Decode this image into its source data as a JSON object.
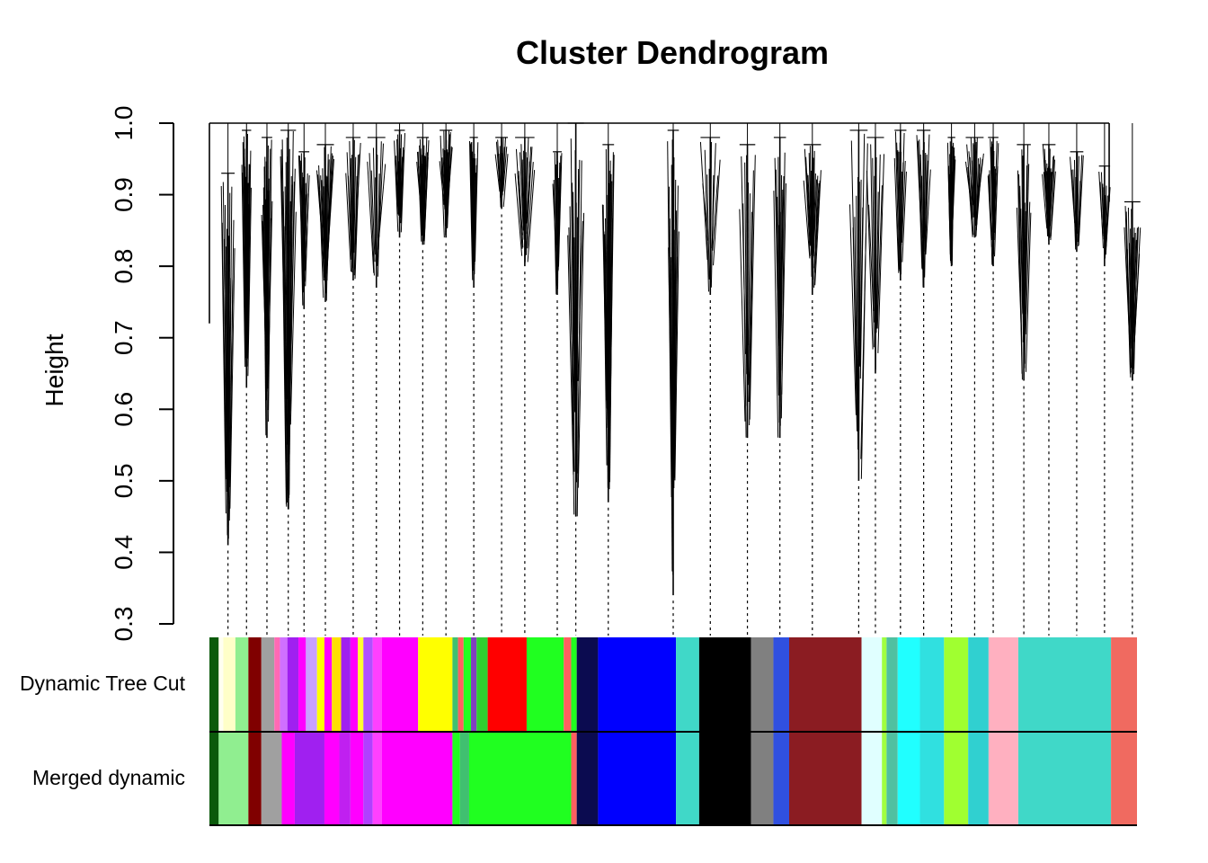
{
  "chart_data": {
    "type": "dendrogram",
    "title": "Cluster Dendrogram",
    "ylabel": "Height",
    "ylim": [
      0.3,
      1.0
    ],
    "yticks": [
      "0.3",
      "0.4",
      "0.5",
      "0.6",
      "0.7",
      "0.8",
      "0.9",
      "1.0"
    ],
    "color_rows": [
      {
        "label": "Dynamic Tree Cut",
        "segments": [
          [
            "#0b5a0b",
            0.0,
            0.01
          ],
          [
            "#fffff0",
            0.01,
            0.015
          ],
          [
            "#ffffc8",
            0.015,
            0.028
          ],
          [
            "#90ee90",
            0.028,
            0.042
          ],
          [
            "#800000",
            0.042,
            0.056
          ],
          [
            "#a0a0a0",
            0.056,
            0.07
          ],
          [
            "#ff69b4",
            0.07,
            0.076
          ],
          [
            "#d070ff",
            0.076,
            0.084
          ],
          [
            "#a020f0",
            0.084,
            0.096
          ],
          [
            "#ff00ff",
            0.096,
            0.104
          ],
          [
            "#c8a0ff",
            0.104,
            0.116
          ],
          [
            "#ffff00",
            0.116,
            0.124
          ],
          [
            "#ff00ff",
            0.124,
            0.132
          ],
          [
            "#ffe000",
            0.132,
            0.142
          ],
          [
            "#a020f0",
            0.142,
            0.152
          ],
          [
            "#ff00ff",
            0.152,
            0.16
          ],
          [
            "#ffff30",
            0.16,
            0.166
          ],
          [
            "#b050ff",
            0.166,
            0.176
          ],
          [
            "#ff40ff",
            0.176,
            0.186
          ],
          [
            "#ff00ff",
            0.186,
            0.225
          ],
          [
            "#ffff00",
            0.225,
            0.262
          ],
          [
            "#40c070",
            0.262,
            0.268
          ],
          [
            "#ff6060",
            0.268,
            0.274
          ],
          [
            "#20ff20",
            0.274,
            0.282
          ],
          [
            "#8040c0",
            0.282,
            0.288
          ],
          [
            "#30d030",
            0.288,
            0.3
          ],
          [
            "#ff0000",
            0.3,
            0.342
          ],
          [
            "#20ff20",
            0.342,
            0.382
          ],
          [
            "#ff6060",
            0.382,
            0.39
          ],
          [
            "#20ff20",
            0.39,
            0.396
          ],
          [
            "#0b0b50",
            0.396,
            0.419
          ],
          [
            "#0000ff",
            0.419,
            0.503
          ],
          [
            "#40d8c8",
            0.503,
            0.528
          ],
          [
            "#000000",
            0.528,
            0.584
          ],
          [
            "#808080",
            0.584,
            0.608
          ],
          [
            "#3050e0",
            0.608,
            0.625
          ],
          [
            "#8b1c22",
            0.625,
            0.703
          ],
          [
            "#e0ffff",
            0.703,
            0.725
          ],
          [
            "#a0ff40",
            0.725,
            0.73
          ],
          [
            "#50c0a0",
            0.73,
            0.742
          ],
          [
            "#20ffff",
            0.742,
            0.766
          ],
          [
            "#30e0e0",
            0.766,
            0.792
          ],
          [
            "#a0ff30",
            0.792,
            0.818
          ],
          [
            "#30d0d0",
            0.818,
            0.84
          ],
          [
            "#ffb0c0",
            0.84,
            0.872
          ],
          [
            "#40d8c8",
            0.872,
            0.972
          ],
          [
            "#f06a60",
            0.972,
            1.0
          ]
        ]
      },
      {
        "label": "Merged dynamic",
        "segments": [
          [
            "#0b5a0b",
            0.0,
            0.01
          ],
          [
            "#90ee90",
            0.01,
            0.042
          ],
          [
            "#800000",
            0.042,
            0.056
          ],
          [
            "#a0a0a0",
            0.056,
            0.078
          ],
          [
            "#ff00ff",
            0.078,
            0.092
          ],
          [
            "#a020f0",
            0.092,
            0.124
          ],
          [
            "#ff00ff",
            0.124,
            0.14
          ],
          [
            "#c020f0",
            0.14,
            0.152
          ],
          [
            "#ff00ff",
            0.152,
            0.166
          ],
          [
            "#b040ff",
            0.166,
            0.176
          ],
          [
            "#ff40ff",
            0.176,
            0.186
          ],
          [
            "#ff00ff",
            0.186,
            0.262
          ],
          [
            "#20ff20",
            0.262,
            0.27
          ],
          [
            "#40c070",
            0.27,
            0.28
          ],
          [
            "#20ff20",
            0.28,
            0.39
          ],
          [
            "#ff6060",
            0.39,
            0.396
          ],
          [
            "#0b0b50",
            0.396,
            0.419
          ],
          [
            "#0000ff",
            0.419,
            0.503
          ],
          [
            "#40d8c8",
            0.503,
            0.528
          ],
          [
            "#000000",
            0.528,
            0.584
          ],
          [
            "#808080",
            0.584,
            0.608
          ],
          [
            "#3050e0",
            0.608,
            0.625
          ],
          [
            "#8b1c22",
            0.625,
            0.703
          ],
          [
            "#e0ffff",
            0.703,
            0.725
          ],
          [
            "#a0ff40",
            0.725,
            0.73
          ],
          [
            "#50c0a0",
            0.73,
            0.742
          ],
          [
            "#20ffff",
            0.742,
            0.766
          ],
          [
            "#30e0e0",
            0.766,
            0.792
          ],
          [
            "#a0ff30",
            0.792,
            0.818
          ],
          [
            "#30d0d0",
            0.818,
            0.84
          ],
          [
            "#ffb0c0",
            0.84,
            0.872
          ],
          [
            "#40d8c8",
            0.872,
            0.972
          ],
          [
            "#f06a60",
            0.972,
            1.0
          ]
        ]
      }
    ],
    "module_heights": [
      {
        "pos": 0.02,
        "h": 0.41,
        "top": 0.93
      },
      {
        "pos": 0.04,
        "h": 0.63,
        "top": 0.99
      },
      {
        "pos": 0.062,
        "h": 0.56,
        "top": 0.98
      },
      {
        "pos": 0.085,
        "h": 0.46,
        "top": 0.99
      },
      {
        "pos": 0.102,
        "h": 0.74,
        "top": 0.96
      },
      {
        "pos": 0.125,
        "h": 0.75,
        "top": 0.97
      },
      {
        "pos": 0.155,
        "h": 0.78,
        "top": 0.98
      },
      {
        "pos": 0.18,
        "h": 0.77,
        "top": 0.98
      },
      {
        "pos": 0.205,
        "h": 0.84,
        "top": 0.99
      },
      {
        "pos": 0.23,
        "h": 0.83,
        "top": 0.98
      },
      {
        "pos": 0.255,
        "h": 0.84,
        "top": 0.99
      },
      {
        "pos": 0.285,
        "h": 0.77,
        "top": 0.98
      },
      {
        "pos": 0.315,
        "h": 0.88,
        "top": 0.98
      },
      {
        "pos": 0.34,
        "h": 0.8,
        "top": 0.98
      },
      {
        "pos": 0.375,
        "h": 0.76,
        "top": 0.96
      },
      {
        "pos": 0.395,
        "h": 0.45,
        "top": 1.0
      },
      {
        "pos": 0.43,
        "h": 0.47,
        "top": 0.97
      },
      {
        "pos": 0.5,
        "h": 0.34,
        "top": 0.99
      },
      {
        "pos": 0.54,
        "h": 0.76,
        "top": 0.98
      },
      {
        "pos": 0.58,
        "h": 0.56,
        "top": 0.97
      },
      {
        "pos": 0.615,
        "h": 0.56,
        "top": 0.98
      },
      {
        "pos": 0.65,
        "h": 0.76,
        "top": 0.97
      },
      {
        "pos": 0.7,
        "h": 0.5,
        "top": 0.99
      },
      {
        "pos": 0.718,
        "h": 0.65,
        "top": 0.98
      },
      {
        "pos": 0.745,
        "h": 0.78,
        "top": 0.99
      },
      {
        "pos": 0.77,
        "h": 0.77,
        "top": 0.99
      },
      {
        "pos": 0.8,
        "h": 0.8,
        "top": 0.98
      },
      {
        "pos": 0.825,
        "h": 0.84,
        "top": 0.98
      },
      {
        "pos": 0.845,
        "h": 0.8,
        "top": 0.98
      },
      {
        "pos": 0.878,
        "h": 0.64,
        "top": 0.97
      },
      {
        "pos": 0.905,
        "h": 0.83,
        "top": 0.97
      },
      {
        "pos": 0.935,
        "h": 0.82,
        "top": 0.96
      },
      {
        "pos": 0.965,
        "h": 0.8,
        "top": 0.94
      },
      {
        "pos": 0.995,
        "h": 0.64,
        "top": 0.89
      }
    ],
    "grid": false,
    "legend": "none"
  }
}
